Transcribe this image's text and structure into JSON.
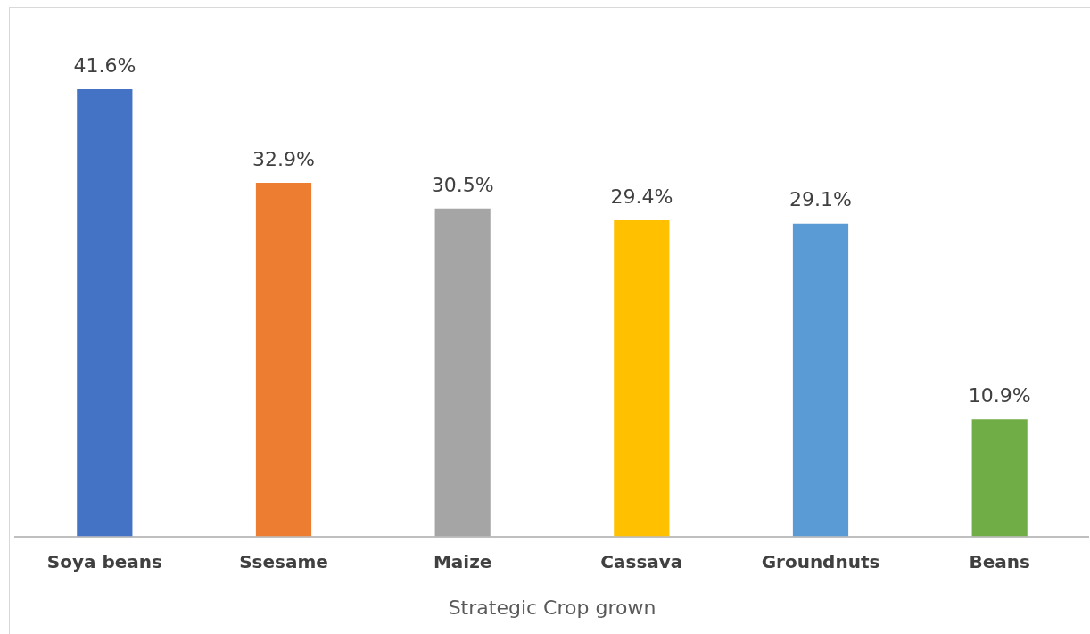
{
  "chart_data": {
    "type": "bar",
    "xlabel": "Strategic Crop grown",
    "categories": [
      "Soya beans",
      "Ssesame",
      "Maize",
      "Cassava",
      "Groundnuts",
      "Beans"
    ],
    "values": [
      41.6,
      32.9,
      30.5,
      29.4,
      29.1,
      10.9
    ],
    "colors": [
      "#4472c4",
      "#ed7d31",
      "#a5a5a5",
      "#ffc000",
      "#5b9bd5",
      "#70ad47"
    ],
    "value_labels": [
      "41.6%",
      "32.9%",
      "30.5%",
      "29.4%",
      "29.1%",
      "10.9%"
    ],
    "grid": false,
    "legend": false
  }
}
